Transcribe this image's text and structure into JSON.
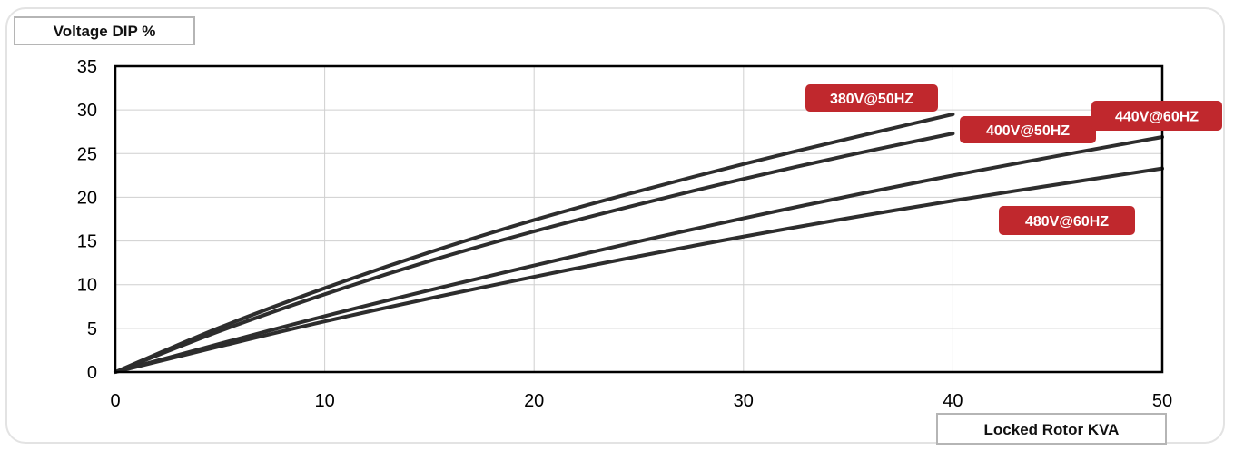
{
  "chart_data": {
    "type": "line",
    "ylabel": "Voltage DIP %",
    "xlabel": "Locked Rotor KVA",
    "xlim": [
      0,
      50
    ],
    "ylim": [
      0,
      35
    ],
    "x_ticks": [
      0,
      10,
      20,
      30,
      40,
      50
    ],
    "y_ticks": [
      0,
      5,
      10,
      15,
      20,
      25,
      30,
      35
    ],
    "grid": true,
    "legend": "inline labels near line ends",
    "colors": {
      "line": "#2d2d2d",
      "label_bg": "#c0282d",
      "label_text": "#ffffff",
      "grid": "#cfcfcf",
      "axis": "#000000"
    },
    "series": [
      {
        "name": "380V@50HZ",
        "x": [
          0,
          5,
          10,
          15,
          20,
          25,
          30,
          35,
          40
        ],
        "y": [
          0,
          5.1,
          9.6,
          13.7,
          17.4,
          20.7,
          23.8,
          26.7,
          29.5
        ]
      },
      {
        "name": "400V@50HZ",
        "x": [
          0,
          5,
          10,
          15,
          20,
          25,
          30,
          35,
          40
        ],
        "y": [
          0,
          4.7,
          8.9,
          12.7,
          16.1,
          19.2,
          22.1,
          24.8,
          27.3
        ]
      },
      {
        "name": "440V@60HZ",
        "x": [
          0,
          10,
          20,
          30,
          40,
          50
        ],
        "y": [
          0,
          6.4,
          12.2,
          17.6,
          22.5,
          26.9
        ]
      },
      {
        "name": "480V@60HZ",
        "x": [
          0,
          10,
          20,
          30,
          40,
          50
        ],
        "y": [
          0,
          5.8,
          10.9,
          15.5,
          19.6,
          23.3
        ]
      }
    ]
  }
}
